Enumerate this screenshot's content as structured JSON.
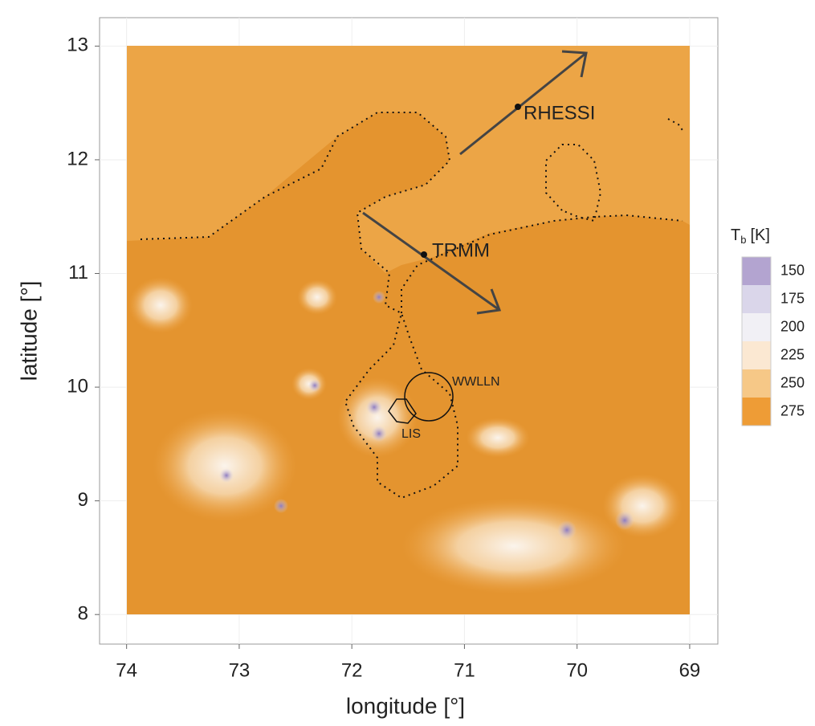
{
  "chart_data": {
    "type": "heatmap",
    "xlabel": "longitude [°]",
    "ylabel": "latitude [°]",
    "xlim": [
      74.24,
      68.75
    ],
    "ylim": [
      7.74,
      13.25
    ],
    "xticks": [
      74,
      73,
      72,
      71,
      70,
      69
    ],
    "yticks": [
      8,
      9,
      10,
      11,
      12,
      13
    ],
    "grid": true,
    "annotations": [
      "RHESSI",
      "TRMM",
      "WWLLN",
      "LIS"
    ],
    "legend": {
      "title": "T",
      "title_subscript": "b",
      "title_unit": "[K]",
      "values": [
        150,
        175,
        200,
        225,
        250,
        275
      ],
      "colors": [
        "#b3a4d0",
        "#dad6ea",
        "#f1f0f5",
        "#fbe8d2",
        "#f6c887",
        "#ee9c36"
      ]
    }
  }
}
